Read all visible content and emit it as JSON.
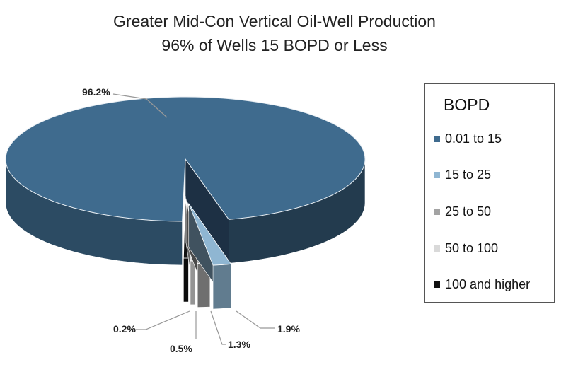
{
  "chart_data": {
    "type": "pie",
    "title": "Greater Mid-Con Vertical Oil-Well Production",
    "subtitle": "96% of Wells 15 BOPD or Less",
    "legend_title": "BOPD",
    "legend_position": "right",
    "categories": [
      "0.01 to 15",
      "15 to 25",
      "25 to 50",
      "50 to 100",
      "100 and higher"
    ],
    "values": [
      96.2,
      1.9,
      1.3,
      0.5,
      0.2
    ],
    "data_labels": [
      "96.2%",
      "1.9%",
      "1.3%",
      "0.5%",
      "0.2%"
    ],
    "colors": [
      "#3f6b8e",
      "#8fb6d2",
      "#a3a3a3",
      "#d9d9d9",
      "#111111"
    ]
  }
}
